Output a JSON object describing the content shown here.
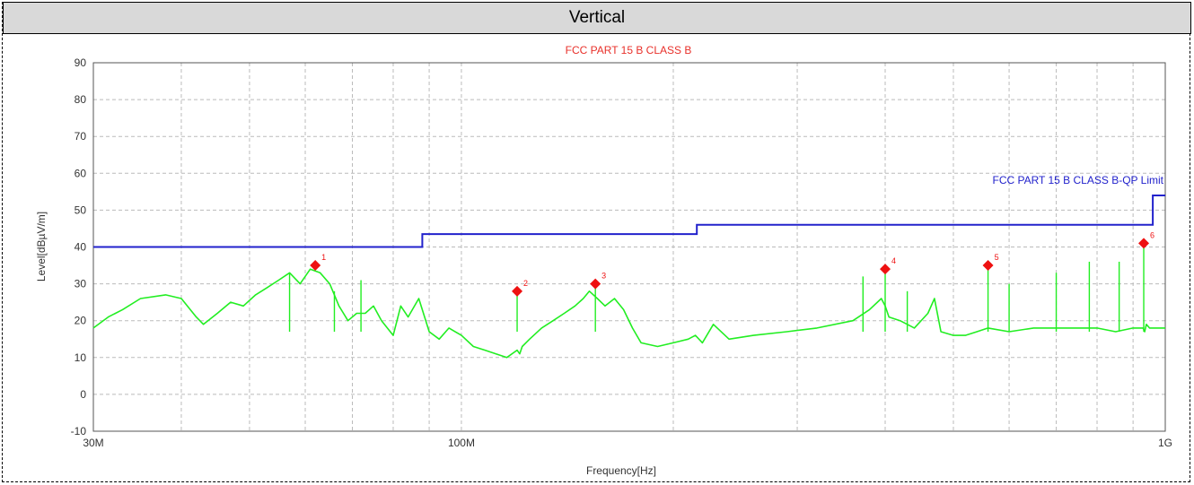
{
  "panel": {
    "title": "Vertical"
  },
  "chart_data": {
    "type": "line",
    "title": "FCC PART 15 B CLASS B",
    "xlabel": "Frequency[Hz]",
    "ylabel": "Level[dBµV/m]",
    "x_scale": "log",
    "xlim": [
      30000000,
      1000000000
    ],
    "ylim": [
      -10,
      90
    ],
    "grid": true,
    "x_tick_labels": [
      {
        "value": 30000000,
        "label": "30M"
      },
      {
        "value": 100000000,
        "label": "100M"
      },
      {
        "value": 1000000000,
        "label": "1G"
      }
    ],
    "y_ticks": [
      -10,
      0,
      10,
      20,
      30,
      40,
      50,
      60,
      70,
      80,
      90
    ],
    "limit_line": {
      "name": "FCC PART 15 B CLASS B-QP Limit",
      "color": "#2222cc",
      "points": [
        [
          30000000,
          40
        ],
        [
          88000000,
          40
        ],
        [
          88000000,
          43.5
        ],
        [
          216000000,
          43.5
        ],
        [
          216000000,
          46
        ],
        [
          960000000,
          46
        ],
        [
          960000000,
          54
        ],
        [
          1000000000,
          54
        ]
      ]
    },
    "series": [
      {
        "color": "#22ee22",
        "x": [
          30000000,
          31500000,
          33000000,
          35000000,
          38000000,
          40000000,
          42000000,
          43000000,
          45000000,
          47000000,
          49000000,
          51000000,
          53000000,
          55000000,
          57000000,
          59000000,
          61000000,
          63000000,
          65000000,
          67000000,
          69000000,
          71000000,
          73000000,
          75000000,
          77000000,
          80000000,
          82000000,
          84000000,
          87000000,
          90000000,
          93000000,
          96000000,
          100000000,
          104000000,
          108000000,
          112000000,
          116000000,
          120000000,
          121000000,
          122000000,
          125000000,
          130000000,
          135000000,
          140000000,
          145000000,
          149000000,
          152000000,
          156000000,
          160000000,
          165000000,
          170000000,
          175000000,
          180000000,
          190000000,
          200000000,
          210000000,
          215000000,
          220000000,
          228000000,
          240000000,
          260000000,
          290000000,
          320000000,
          360000000,
          380000000,
          395000000,
          400000000,
          405000000,
          420000000,
          440000000,
          460000000,
          470000000,
          480000000,
          500000000,
          520000000,
          540000000,
          560000000,
          600000000,
          650000000,
          700000000,
          750000000,
          800000000,
          850000000,
          900000000,
          930000000,
          935000000,
          940000000,
          950000000,
          970000000,
          1000000000
        ],
        "y": [
          18,
          21,
          23,
          26,
          27,
          26,
          21,
          19,
          22,
          25,
          24,
          27,
          29,
          31,
          33,
          30,
          34,
          33,
          30,
          24,
          20,
          22,
          22,
          24,
          20,
          16,
          24,
          21,
          26,
          17,
          15,
          18,
          16,
          13,
          12,
          11,
          10,
          12,
          11,
          13,
          15,
          18,
          20,
          22,
          24,
          26,
          28,
          26,
          24,
          26,
          23,
          18,
          14,
          13,
          14,
          15,
          16,
          14,
          19,
          15,
          16,
          17,
          18,
          20,
          23,
          26,
          24,
          21,
          20,
          18,
          22,
          26,
          17,
          16,
          16,
          17,
          18,
          17,
          18,
          18,
          18,
          18,
          17,
          18,
          18,
          17,
          19,
          18,
          18,
          18
        ]
      }
    ],
    "spikes": [
      [
        57000000,
        33
      ],
      [
        66000000,
        28
      ],
      [
        72000000,
        31
      ],
      [
        120000000,
        27
      ],
      [
        155000000,
        29
      ],
      [
        372000000,
        32
      ],
      [
        400000000,
        33
      ],
      [
        430000000,
        28
      ],
      [
        560000000,
        34
      ],
      [
        600000000,
        30
      ],
      [
        700000000,
        33
      ],
      [
        780000000,
        36
      ],
      [
        860000000,
        36
      ],
      [
        932000000,
        40
      ]
    ],
    "markers": [
      {
        "label": "1",
        "x": 62000000,
        "y": 35
      },
      {
        "label": "2",
        "x": 120000000,
        "y": 28
      },
      {
        "label": "3",
        "x": 155000000,
        "y": 30
      },
      {
        "label": "4",
        "x": 400000000,
        "y": 34
      },
      {
        "label": "5",
        "x": 560000000,
        "y": 35
      },
      {
        "label": "6",
        "x": 932000000,
        "y": 41
      }
    ]
  }
}
